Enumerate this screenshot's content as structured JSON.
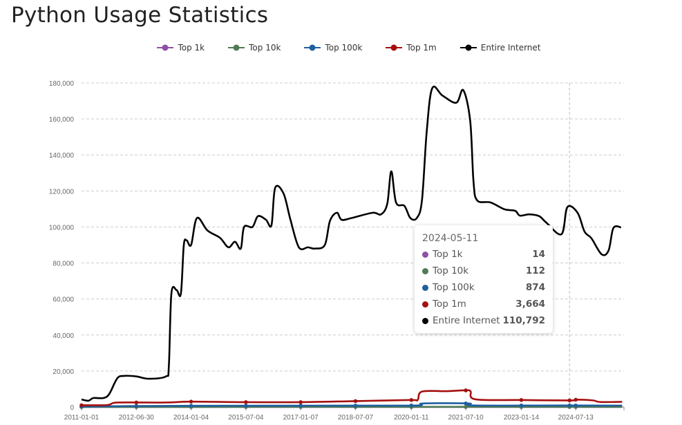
{
  "page_title": "Python Usage Statistics",
  "chart_data": {
    "type": "line",
    "title": "Python Usage Statistics",
    "xlabel": "",
    "ylabel": "",
    "x_unit": "decimal year",
    "xlim": [
      2011.0,
      2025.85
    ],
    "ylim": [
      0,
      180000
    ],
    "y_ticks": [
      0,
      20000,
      40000,
      60000,
      80000,
      100000,
      120000,
      140000,
      160000,
      180000
    ],
    "y_tick_labels": [
      "0",
      "20,000",
      "40,000",
      "60,000",
      "80,000",
      "100,000",
      "120,000",
      "140,000",
      "160,000",
      "180,000"
    ],
    "x_ticks": [
      2011.0,
      2012.5,
      2014.0,
      2015.5,
      2017.0,
      2018.5,
      2020.03,
      2021.52,
      2023.04,
      2024.53
    ],
    "x_tick_labels": [
      "2011-01-01",
      "2012-06-30",
      "2014-01-04",
      "2015-07-04",
      "2017-01-07",
      "2018-07-07",
      "2020-01-11",
      "2021-07-10",
      "2023-01-14",
      "2024-07-13"
    ],
    "grid": true,
    "legend_position": "top-center",
    "series": [
      {
        "name": "Top 1k",
        "color": "#8e4fa6",
        "points": [
          [
            2011.0,
            10
          ],
          [
            2015,
            12
          ],
          [
            2020.3,
            14
          ],
          [
            2021.6,
            16
          ],
          [
            2024.36,
            14
          ],
          [
            2025.8,
            14
          ]
        ]
      },
      {
        "name": "Top 10k",
        "color": "#4f7a54",
        "points": [
          [
            2011.0,
            60
          ],
          [
            2014,
            90
          ],
          [
            2020.3,
            110
          ],
          [
            2021.6,
            150
          ],
          [
            2024.36,
            112
          ],
          [
            2025.8,
            110
          ]
        ]
      },
      {
        "name": "Top 100k",
        "color": "#1f5fa0",
        "points": [
          [
            2011.0,
            300
          ],
          [
            2012.2,
            500
          ],
          [
            2014,
            700
          ],
          [
            2018.5,
            800
          ],
          [
            2020.2,
            900
          ],
          [
            2020.35,
            2000
          ],
          [
            2021.6,
            2000
          ],
          [
            2021.75,
            900
          ],
          [
            2024.36,
            874
          ],
          [
            2025.8,
            800
          ]
        ]
      },
      {
        "name": "Top 1m",
        "color": "#a50f0f",
        "points": [
          [
            2011.0,
            1000
          ],
          [
            2011.7,
            1100
          ],
          [
            2012.0,
            2500
          ],
          [
            2013.3,
            2500
          ],
          [
            2014.0,
            3000
          ],
          [
            2015.5,
            2700
          ],
          [
            2017.0,
            2700
          ],
          [
            2018.5,
            3300
          ],
          [
            2020.0,
            3900
          ],
          [
            2020.2,
            3900
          ],
          [
            2020.32,
            8600
          ],
          [
            2021.0,
            8800
          ],
          [
            2021.5,
            9300
          ],
          [
            2021.65,
            8800
          ],
          [
            2021.78,
            4300
          ],
          [
            2023.0,
            3900
          ],
          [
            2024.36,
            3664
          ],
          [
            2024.55,
            4100
          ],
          [
            2025.0,
            3700
          ],
          [
            2025.2,
            2800
          ],
          [
            2025.8,
            2900
          ]
        ]
      },
      {
        "name": "Entire Internet",
        "color": "#000000",
        "points": [
          [
            2011.0,
            4200
          ],
          [
            2011.19,
            3500
          ],
          [
            2011.32,
            5000
          ],
          [
            2011.6,
            5000
          ],
          [
            2011.76,
            7300
          ],
          [
            2011.98,
            16000
          ],
          [
            2012.17,
            17300
          ],
          [
            2012.5,
            17000
          ],
          [
            2012.84,
            15700
          ],
          [
            2013.31,
            17000
          ],
          [
            2013.39,
            22600
          ],
          [
            2013.46,
            63000
          ],
          [
            2013.6,
            65000
          ],
          [
            2013.72,
            63000
          ],
          [
            2013.8,
            90000
          ],
          [
            2013.88,
            92500
          ],
          [
            2014.0,
            90000
          ],
          [
            2014.16,
            105000
          ],
          [
            2014.45,
            98000
          ],
          [
            2014.79,
            94000
          ],
          [
            2015.02,
            88700
          ],
          [
            2015.2,
            91800
          ],
          [
            2015.36,
            88000
          ],
          [
            2015.45,
            100000
          ],
          [
            2015.68,
            100000
          ],
          [
            2015.83,
            106000
          ],
          [
            2016.05,
            104000
          ],
          [
            2016.2,
            101000
          ],
          [
            2016.3,
            121700
          ],
          [
            2016.53,
            118600
          ],
          [
            2016.72,
            104000
          ],
          [
            2016.95,
            88700
          ],
          [
            2017.2,
            88700
          ],
          [
            2017.39,
            88000
          ],
          [
            2017.66,
            90000
          ],
          [
            2017.8,
            103300
          ],
          [
            2017.99,
            107900
          ],
          [
            2018.12,
            104000
          ],
          [
            2018.4,
            105000
          ],
          [
            2018.97,
            107900
          ],
          [
            2019.2,
            107000
          ],
          [
            2019.37,
            112900
          ],
          [
            2019.48,
            130900
          ],
          [
            2019.61,
            113600
          ],
          [
            2019.84,
            111700
          ],
          [
            2020.0,
            105000
          ],
          [
            2020.18,
            105000
          ],
          [
            2020.32,
            114800
          ],
          [
            2020.45,
            153000
          ],
          [
            2020.6,
            177000
          ],
          [
            2020.88,
            173000
          ],
          [
            2021.26,
            169000
          ],
          [
            2021.45,
            176000
          ],
          [
            2021.64,
            159000
          ],
          [
            2021.73,
            125500
          ],
          [
            2021.83,
            114800
          ],
          [
            2022.2,
            113600
          ],
          [
            2022.58,
            109800
          ],
          [
            2022.87,
            109000
          ],
          [
            2023.0,
            106300
          ],
          [
            2023.25,
            107000
          ],
          [
            2023.53,
            106000
          ],
          [
            2023.72,
            102500
          ],
          [
            2024.14,
            96000
          ],
          [
            2024.3,
            111000
          ],
          [
            2024.58,
            107900
          ],
          [
            2024.77,
            97500
          ],
          [
            2024.96,
            93700
          ],
          [
            2025.24,
            84800
          ],
          [
            2025.43,
            87000
          ],
          [
            2025.56,
            99400
          ],
          [
            2025.77,
            99800
          ]
        ]
      }
    ],
    "hover": {
      "x": 2024.36,
      "date": "2024-05-11",
      "values": [
        {
          "name": "Top 1k",
          "value": "14",
          "color": "#8e4fa6"
        },
        {
          "name": "Top 10k",
          "value": "112",
          "color": "#4f7a54"
        },
        {
          "name": "Top 100k",
          "value": "874",
          "color": "#1f5fa0"
        },
        {
          "name": "Top 1m",
          "value": "3,664",
          "color": "#a50f0f"
        },
        {
          "name": "Entire Internet",
          "value": "110,792",
          "color": "#000000"
        }
      ]
    }
  }
}
